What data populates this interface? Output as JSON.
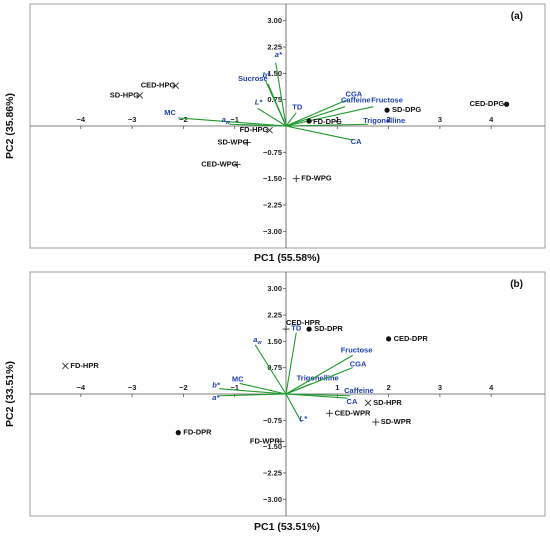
{
  "chart_data": [
    {
      "type": "scatter",
      "panel_label": "(a)",
      "xlabel": "PC1 (55.58%)",
      "ylabel": "PC2 (35.86%)",
      "xlim": [
        -5.3,
        5.3
      ],
      "ylim": [
        -3.6,
        3.6
      ],
      "xticks": [
        -4,
        -3,
        -2,
        -1,
        1,
        2,
        3,
        4
      ],
      "xtick_labels": [
        "−4",
        "−3",
        "−2",
        "−1",
        "1",
        "2",
        "3",
        "4"
      ],
      "yticks": [
        3.0,
        2.25,
        1.5,
        0.75,
        -0.75,
        -1.5,
        -2.25,
        -3.0
      ],
      "ytick_labels": [
        "3.00",
        "2.25",
        "1.50",
        "0.75",
        "−0.75",
        "−1.50",
        "−2.25",
        "−3.00"
      ],
      "loadings": [
        {
          "label": "Sucrose",
          "x": -0.35,
          "y": 1.2
        },
        {
          "label": "b*",
          "x": -0.4,
          "y": 1.3,
          "italic": true
        },
        {
          "label": "a*",
          "x": -0.2,
          "y": 1.8,
          "italic": true
        },
        {
          "label": "MC",
          "x": -2.1,
          "y": 0.23
        },
        {
          "label": "aw",
          "x": -1.1,
          "y": 0.05,
          "italic": true,
          "subscript": "w"
        },
        {
          "label": "L*",
          "x": -0.55,
          "y": 0.5,
          "italic": true
        },
        {
          "label": "TD",
          "x": 0.2,
          "y": 0.38
        },
        {
          "label": "CGA",
          "x": 1.2,
          "y": 0.75
        },
        {
          "label": "Caffeine",
          "x": 1.15,
          "y": 0.55
        },
        {
          "label": "Fructose",
          "x": 1.7,
          "y": 0.55
        },
        {
          "label": "Trigonelline",
          "x": 1.6,
          "y": 0.05
        },
        {
          "label": "CA",
          "x": 1.3,
          "y": -0.4
        }
      ],
      "samples": [
        {
          "label": "CED-DPG",
          "x": 4.3,
          "y": 0.62,
          "marker": "dot"
        },
        {
          "label": "SD-DPG",
          "x": 1.97,
          "y": 0.45,
          "marker": "dot"
        },
        {
          "label": "FD-DPG",
          "x": 0.45,
          "y": 0.14,
          "marker": "dot"
        },
        {
          "label": "CED-HPG",
          "x": -2.15,
          "y": 1.15,
          "marker": "x"
        },
        {
          "label": "SD-HPG",
          "x": -2.85,
          "y": 0.87,
          "marker": "x"
        },
        {
          "label": "FD-HPG",
          "x": -0.32,
          "y": -0.12,
          "marker": "x"
        },
        {
          "label": "SD-WPG",
          "x": -0.75,
          "y": -0.47,
          "marker": "plus"
        },
        {
          "label": "CED-WPG",
          "x": -0.95,
          "y": -1.1,
          "marker": "plus"
        },
        {
          "label": "FD-WPG",
          "x": 0.2,
          "y": -1.5,
          "marker": "plus"
        }
      ]
    },
    {
      "type": "scatter",
      "panel_label": "(b)",
      "xlabel": "PC1 (53.51%)",
      "ylabel": "PC2 (33.51%)",
      "xlim": [
        -5.3,
        5.3
      ],
      "ylim": [
        -3.6,
        3.6
      ],
      "xticks": [
        -4,
        -3,
        -2,
        -1,
        1,
        2,
        3,
        4
      ],
      "xtick_labels": [
        "−4",
        "−3",
        "−2",
        "−1",
        "1",
        "2",
        "3",
        "4"
      ],
      "yticks": [
        3.0,
        2.25,
        1.5,
        0.75,
        -0.75,
        -1.5,
        -2.25,
        -3.0
      ],
      "ytick_labels": [
        "3.00",
        "2.25",
        "1.50",
        "0.75",
        "−0.75",
        "−1.50",
        "−2.25",
        "−3.00"
      ],
      "loadings": [
        {
          "label": "TD",
          "x": 0.2,
          "y": 1.75
        },
        {
          "label": "aw",
          "x": -0.6,
          "y": 1.4,
          "italic": true,
          "subscript": "w"
        },
        {
          "label": "b*",
          "x": -1.3,
          "y": 0.15,
          "italic": true
        },
        {
          "label": "MC",
          "x": -0.9,
          "y": 0.3
        },
        {
          "label": "a*",
          "x": -1.3,
          "y": -0.05,
          "italic": true
        },
        {
          "label": "Trigonelline",
          "x": 0.5,
          "y": 0.3
        },
        {
          "label": "Fructose",
          "x": 1.3,
          "y": 1.1
        },
        {
          "label": "CGA",
          "x": 1.3,
          "y": 0.75
        },
        {
          "label": "Caffeine",
          "x": 1.25,
          "y": -0.05
        },
        {
          "label": "CA",
          "x": 1.2,
          "y": -0.12
        },
        {
          "label": "L*",
          "x": 0.3,
          "y": -0.8,
          "italic": true
        }
      ],
      "samples": [
        {
          "label": "CED-HPR",
          "x": 0.0,
          "y": 1.85,
          "marker": "plus"
        },
        {
          "label": "SD-DPR",
          "x": 0.45,
          "y": 1.85,
          "marker": "dot"
        },
        {
          "label": "CED-DPR",
          "x": 2.0,
          "y": 1.57,
          "marker": "dot"
        },
        {
          "label": "FD-HPR",
          "x": -4.3,
          "y": 0.8,
          "marker": "x"
        },
        {
          "label": "SD-HPR",
          "x": 1.6,
          "y": -0.25,
          "marker": "x"
        },
        {
          "label": "CED-WPR",
          "x": 0.85,
          "y": -0.55,
          "marker": "plus"
        },
        {
          "label": "SD-WPR",
          "x": 1.75,
          "y": -0.8,
          "marker": "plus"
        },
        {
          "label": "FD-DPR",
          "x": -2.1,
          "y": -1.1,
          "marker": "dot"
        },
        {
          "label": "FD-WPR",
          "x": -0.1,
          "y": -1.35,
          "marker": "plus"
        }
      ]
    }
  ]
}
